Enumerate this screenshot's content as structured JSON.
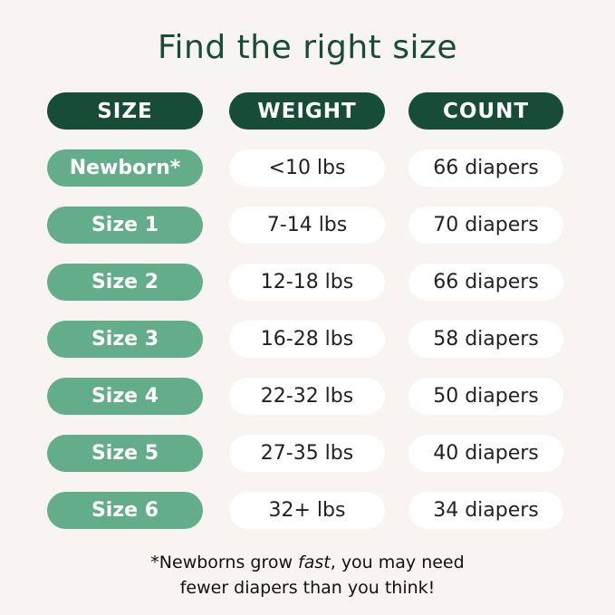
{
  "title": "Find the right size",
  "headers": [
    "SIZE",
    "WEIGHT",
    "COUNT"
  ],
  "rows": [
    {
      "size": "Newborn*",
      "weight": "<10 lbs",
      "count": "66 diapers"
    },
    {
      "size": "Size 1",
      "weight": "7-14 lbs",
      "count": "70 diapers"
    },
    {
      "size": "Size 2",
      "weight": "12-18 lbs",
      "count": "66 diapers"
    },
    {
      "size": "Size 3",
      "weight": "16-28 lbs",
      "count": "58 diapers"
    },
    {
      "size": "Size 4",
      "weight": "22-32 lbs",
      "count": "50 diapers"
    },
    {
      "size": "Size 5",
      "weight": "27-35 lbs",
      "count": "40 diapers"
    },
    {
      "size": "Size 6",
      "weight": "32+ lbs",
      "count": "34 diapers"
    }
  ],
  "footnote": {
    "pre": "*Newborns grow ",
    "em": "fast",
    "post": ", you may need",
    "line2": "fewer diapers than you think!"
  },
  "colors": {
    "dark_green": "#174d37",
    "light_green": "#64ad8a",
    "background": "#f8f4f1"
  }
}
